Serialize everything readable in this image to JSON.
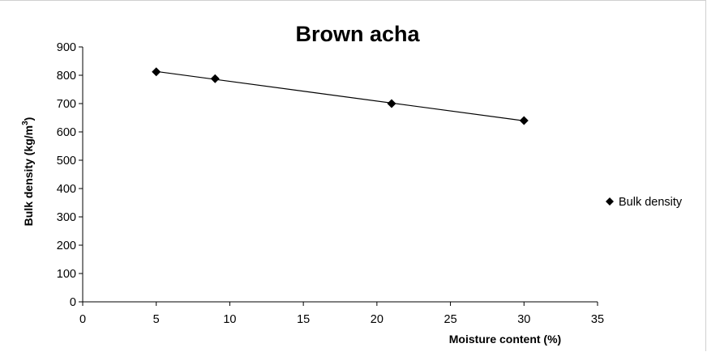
{
  "chart_data": {
    "type": "scatter",
    "title": "Brown acha",
    "xlabel": "Moisture content (%)",
    "ylabel_main": "Bulk density (kg/m",
    "ylabel_sup": "3",
    "ylabel_close": ")",
    "xlim": [
      0,
      35
    ],
    "ylim": [
      0,
      900
    ],
    "xticks": [
      0,
      5,
      10,
      15,
      20,
      25,
      30,
      35
    ],
    "yticks": [
      0,
      100,
      200,
      300,
      400,
      500,
      600,
      700,
      800,
      900
    ],
    "grid": false,
    "legend_position": "right",
    "series": [
      {
        "name": "Bulk density",
        "marker": "diamond",
        "color": "#000000",
        "x": [
          5,
          9,
          21,
          30
        ],
        "y": [
          812,
          788,
          700,
          640
        ]
      }
    ],
    "trendline": {
      "type": "linear",
      "color": "#000000",
      "x_from": 5,
      "x_to": 30
    }
  }
}
